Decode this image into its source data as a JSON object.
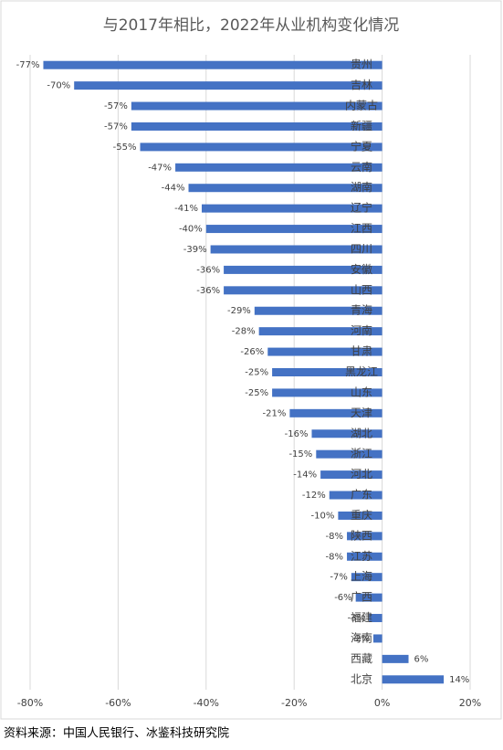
{
  "chart_data": {
    "type": "barh",
    "title": "与2017年相比，2022年从业机构变化情况",
    "categories": [
      "贵州",
      "吉林",
      "内蒙古",
      "新疆",
      "宁夏",
      "云南",
      "湖南",
      "辽宁",
      "江西",
      "四川",
      "安徽",
      "山西",
      "青海",
      "河南",
      "甘肃",
      "黑龙江",
      "山东",
      "天津",
      "湖北",
      "浙江",
      "河北",
      "广东",
      "重庆",
      "陕西",
      "江苏",
      "上海",
      "广西",
      "福建",
      "海南",
      "西藏",
      "北京"
    ],
    "values": [
      -77,
      -70,
      -57,
      -57,
      -55,
      -47,
      -44,
      -41,
      -40,
      -39,
      -36,
      -36,
      -29,
      -28,
      -26,
      -25,
      -25,
      -21,
      -16,
      -15,
      -14,
      -12,
      -10,
      -8,
      -8,
      -7,
      -6,
      -3,
      -2,
      6,
      14
    ],
    "value_labels": [
      "-77%",
      "-70%",
      "-57%",
      "-57%",
      "-55%",
      "-47%",
      "-44%",
      "-41%",
      "-40%",
      "-39%",
      "-36%",
      "-36%",
      "-29%",
      "-28%",
      "-26%",
      "-25%",
      "-25%",
      "-21%",
      "-16%",
      "-15%",
      "-14%",
      "-12%",
      "-10%",
      "-8%",
      "-8%",
      "-7%",
      "-6%",
      "-3%",
      "-2%",
      "6%",
      "14%"
    ],
    "color": "#4472c4",
    "xlim": [
      -80,
      20
    ],
    "xticks": [
      {
        "value": -80,
        "label": "-80%"
      },
      {
        "value": -60,
        "label": "-60%"
      },
      {
        "value": -40,
        "label": "-40%"
      },
      {
        "value": -20,
        "label": "-20%"
      },
      {
        "value": 0,
        "label": "0%"
      },
      {
        "value": 20,
        "label": "20%"
      }
    ],
    "grid": true,
    "source": "资料来源：中国人民银行、冰鉴科技研究院"
  }
}
